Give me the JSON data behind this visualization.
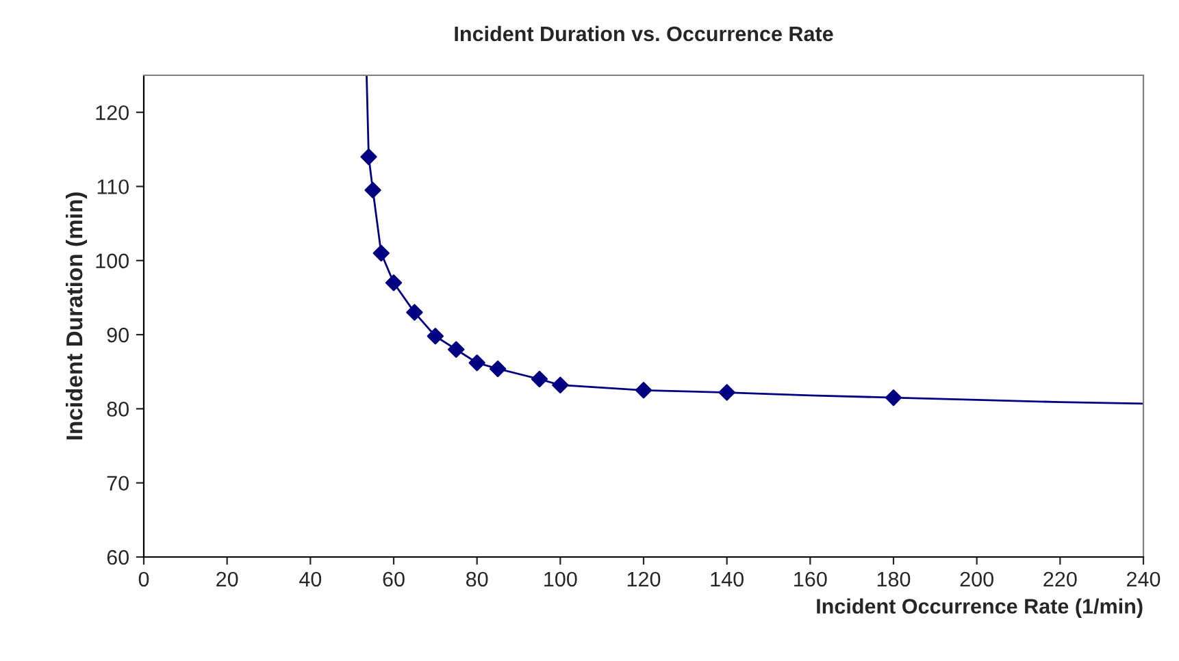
{
  "chart_data": {
    "type": "scatter",
    "title": "Incident Duration vs. Occurrence Rate",
    "xlabel": "Incident Occurrence Rate (1/min)",
    "ylabel": "Incident Duration (min)",
    "series": [
      {
        "type": "line",
        "color": "#000080",
        "marker": "none",
        "line_style": "solid",
        "x": [
          53.5,
          54,
          55,
          57,
          60,
          65,
          70,
          75,
          80,
          85,
          95,
          100,
          120,
          140,
          160,
          180,
          200,
          220,
          240
        ],
        "values": [
          125,
          114,
          109.5,
          101,
          97,
          93,
          89.8,
          88,
          86.2,
          85.4,
          84,
          83.2,
          82.5,
          82.2,
          81.8,
          81.5,
          81.2,
          80.9,
          80.7
        ]
      },
      {
        "color": "#000080",
        "marker": "diamond",
        "x": [
          54,
          55,
          57,
          60,
          65,
          70,
          75,
          80,
          85,
          95,
          100,
          120,
          140,
          180
        ],
        "values": [
          114,
          109.5,
          101,
          97,
          93,
          89.8,
          88,
          86.2,
          85.4,
          84,
          83.2,
          82.5,
          82.2,
          81.5
        ]
      }
    ],
    "xlim": [
      0,
      240
    ],
    "xticks": [
      0,
      20,
      40,
      60,
      80,
      100,
      120,
      140,
      160,
      180,
      200,
      220,
      240
    ],
    "ylim": [
      60,
      125
    ],
    "yticks": [
      60,
      70,
      80,
      90,
      100,
      110,
      120
    ],
    "grid": false,
    "legend": false
  }
}
